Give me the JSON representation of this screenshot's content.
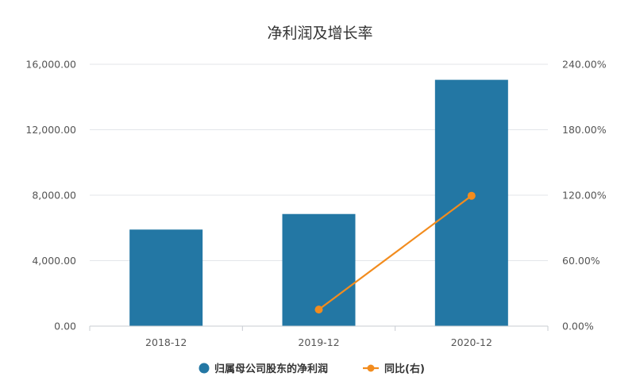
{
  "chart_data": {
    "type": "bar",
    "title": "净利润及增长率",
    "categories": [
      "2018-12",
      "2019-12",
      "2020-12"
    ],
    "series": [
      {
        "name": "归属母公司股东的净利润",
        "type": "bar",
        "axis": "left",
        "color": "#2377a4",
        "values": [
          5900,
          6850,
          15050
        ]
      },
      {
        "name": "同比(右)",
        "type": "line",
        "axis": "right",
        "color": "#f28c1e",
        "values": [
          null,
          15.2,
          119.5
        ]
      }
    ],
    "y_left": {
      "min": 0,
      "max": 16000,
      "ticks": [
        "0.00",
        "4,000.00",
        "8,000.00",
        "12,000.00",
        "16,000.00"
      ]
    },
    "y_right": {
      "min": 0,
      "max": 240,
      "ticks": [
        "0.00%",
        "60.00%",
        "120.00%",
        "180.00%",
        "240.00%"
      ]
    },
    "grid": true,
    "legend_position": "bottom"
  }
}
